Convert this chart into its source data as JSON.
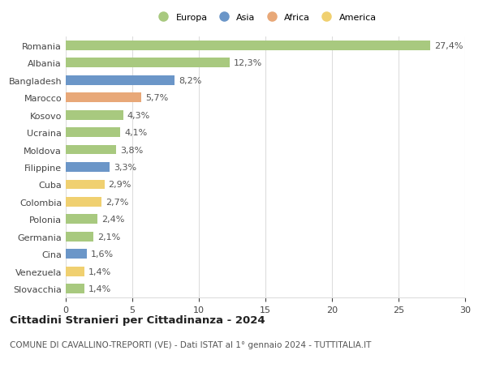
{
  "categories": [
    "Romania",
    "Albania",
    "Bangladesh",
    "Marocco",
    "Kosovo",
    "Ucraina",
    "Moldova",
    "Filippine",
    "Cuba",
    "Colombia",
    "Polonia",
    "Germania",
    "Cina",
    "Venezuela",
    "Slovacchia"
  ],
  "values": [
    27.4,
    12.3,
    8.2,
    5.7,
    4.3,
    4.1,
    3.8,
    3.3,
    2.9,
    2.7,
    2.4,
    2.1,
    1.6,
    1.4,
    1.4
  ],
  "labels": [
    "27,4%",
    "12,3%",
    "8,2%",
    "5,7%",
    "4,3%",
    "4,1%",
    "3,8%",
    "3,3%",
    "2,9%",
    "2,7%",
    "2,4%",
    "2,1%",
    "1,6%",
    "1,4%",
    "1,4%"
  ],
  "continents": [
    "Europa",
    "Europa",
    "Asia",
    "Africa",
    "Europa",
    "Europa",
    "Europa",
    "Asia",
    "America",
    "America",
    "Europa",
    "Europa",
    "Asia",
    "America",
    "Europa"
  ],
  "continent_colors": {
    "Europa": "#a8c97f",
    "Asia": "#6b96c8",
    "Africa": "#e8a878",
    "America": "#f0d070"
  },
  "legend_entries": [
    "Europa",
    "Asia",
    "Africa",
    "America"
  ],
  "title": "Cittadini Stranieri per Cittadinanza - 2024",
  "subtitle": "COMUNE DI CAVALLINO-TREPORTI (VE) - Dati ISTAT al 1° gennaio 2024 - TUTTITALIA.IT",
  "xlim": [
    0,
    30
  ],
  "xticks": [
    0,
    5,
    10,
    15,
    20,
    25,
    30
  ],
  "background_color": "#ffffff",
  "grid_color": "#dddddd",
  "bar_height": 0.55,
  "label_fontsize": 8,
  "tick_fontsize": 8,
  "title_fontsize": 9.5,
  "subtitle_fontsize": 7.5
}
